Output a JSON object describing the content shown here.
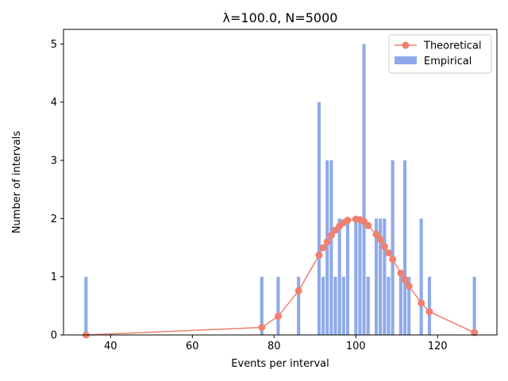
{
  "chart_data": {
    "type": "bar",
    "title": "λ=100.0, N=5000",
    "xlabel": "Events per interval",
    "ylabel": "Number of intervals",
    "xlim": [
      28.5,
      134.5
    ],
    "ylim": [
      0,
      5.25
    ],
    "xticks": [
      40,
      60,
      80,
      100,
      120
    ],
    "yticks": [
      0,
      1,
      2,
      3,
      4,
      5
    ],
    "legend_position": "top-right",
    "colors": {
      "bars": "#8faaeb",
      "line": "#f08070"
    },
    "series": [
      {
        "name": "Theoretical",
        "kind": "line",
        "x": [
          34,
          77,
          81,
          86,
          91,
          92,
          93,
          94,
          95,
          96,
          97,
          98,
          100,
          101,
          102,
          103,
          105,
          106,
          107,
          108,
          109,
          111,
          112,
          113,
          116,
          118,
          129
        ],
        "y": [
          0.0,
          0.13,
          0.32,
          0.76,
          1.37,
          1.5,
          1.6,
          1.71,
          1.8,
          1.87,
          1.93,
          1.97,
          1.99,
          1.98,
          1.95,
          1.88,
          1.73,
          1.64,
          1.52,
          1.41,
          1.3,
          1.06,
          0.95,
          0.84,
          0.55,
          0.4,
          0.04
        ]
      },
      {
        "name": "Empirical",
        "kind": "bar",
        "x": [
          34,
          77,
          81,
          86,
          91,
          92,
          93,
          94,
          95,
          96,
          97,
          98,
          100,
          101,
          102,
          103,
          105,
          106,
          107,
          108,
          109,
          111,
          112,
          113,
          116,
          118,
          129
        ],
        "y": [
          1,
          1,
          1,
          1,
          4,
          1,
          3,
          3,
          1,
          2,
          1,
          2,
          2,
          2,
          5,
          1,
          2,
          2,
          2,
          1,
          3,
          1,
          3,
          1,
          2,
          1,
          1
        ]
      }
    ]
  }
}
